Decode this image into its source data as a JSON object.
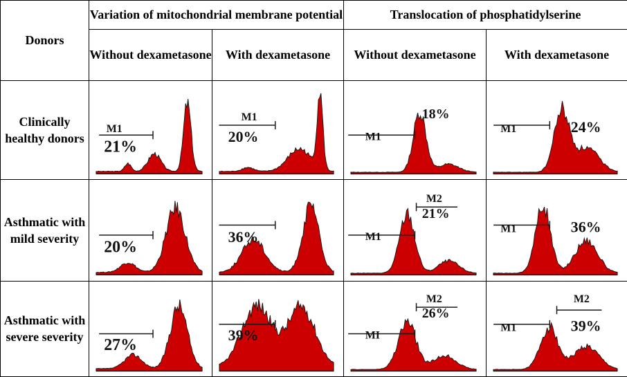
{
  "header": {
    "donors": "Donors",
    "mmp": "Variation of mitochondrial membrane potential",
    "ps": "Translocation of phosphatidylserine",
    "without": "Without dexametasone",
    "with": "With dexametasone",
    "with_one_line": "With dexametasone"
  },
  "rows": [
    {
      "donor": "Clinically healthy donors"
    },
    {
      "donor": "Asthmatic with mild severity"
    },
    {
      "donor": "Asthmatic with severe severity"
    }
  ],
  "colors": {
    "fill": "#cc0000",
    "line": "#1a1a1a"
  },
  "chart_data": {
    "type": "table",
    "description_columns": [
      "MMP without dexametasone",
      "MMP with dexametasone",
      "PS without dexametasone",
      "PS with dexametasone"
    ],
    "cells": [
      [
        {
          "marker": "M1",
          "value": "21%",
          "peaks": [
            {
              "c": 0.3,
              "h": 0.1,
              "w": 0.03
            },
            {
              "c": 0.55,
              "h": 0.22,
              "w": 0.06
            },
            {
              "c": 0.86,
              "h": 0.85,
              "w": 0.035
            }
          ],
          "tail": 0.03
        },
        {
          "marker": "M1",
          "value": "20%",
          "peaks": [
            {
              "c": 0.25,
              "h": 0.05,
              "w": 0.05
            },
            {
              "c": 0.7,
              "h": 0.28,
              "w": 0.1
            },
            {
              "c": 0.88,
              "h": 0.95,
              "w": 0.025
            }
          ],
          "tail": 0.03
        },
        {
          "marker": "M1",
          "value": "18%",
          "peaks": [
            {
              "c": 0.55,
              "h": 0.75,
              "w": 0.05
            },
            {
              "c": 0.78,
              "h": 0.1,
              "w": 0.08
            }
          ],
          "tail": 0.02
        },
        {
          "marker": "M1",
          "value": "24%",
          "peaks": [
            {
              "c": 0.55,
              "h": 0.75,
              "w": 0.06
            },
            {
              "c": 0.75,
              "h": 0.3,
              "w": 0.1
            }
          ],
          "tail": 0.02
        }
      ],
      [
        {
          "marker": "",
          "value": "20%",
          "peaks": [
            {
              "c": 0.3,
              "h": 0.12,
              "w": 0.07
            },
            {
              "c": 0.75,
              "h": 0.78,
              "w": 0.09
            }
          ],
          "tail": 0.03
        },
        {
          "marker": "",
          "value": "36%",
          "peaks": [
            {
              "c": 0.3,
              "h": 0.4,
              "w": 0.1
            },
            {
              "c": 0.8,
              "h": 0.8,
              "w": 0.07
            }
          ],
          "tail": 0.03
        },
        {
          "marker": "M1",
          "value": "21%",
          "secondary": "M2",
          "peaks": [
            {
              "c": 0.45,
              "h": 0.72,
              "w": 0.06
            },
            {
              "c": 0.78,
              "h": 0.15,
              "w": 0.08
            }
          ],
          "tail": 0.02
        },
        {
          "marker": "M1",
          "value": "36%",
          "peaks": [
            {
              "c": 0.4,
              "h": 0.82,
              "w": 0.06
            },
            {
              "c": 0.75,
              "h": 0.4,
              "w": 0.09
            }
          ],
          "tail": 0.02
        }
      ],
      [
        {
          "marker": "",
          "value": "27%",
          "peaks": [
            {
              "c": 0.35,
              "h": 0.18,
              "w": 0.08
            },
            {
              "c": 0.78,
              "h": 0.82,
              "w": 0.08
            }
          ],
          "tail": 0.03
        },
        {
          "marker": "",
          "value": "39%",
          "peaks": [
            {
              "c": 0.33,
              "h": 0.8,
              "w": 0.13
            },
            {
              "c": 0.72,
              "h": 0.78,
              "w": 0.12
            }
          ],
          "tail": 0.05
        },
        {
          "marker": "MI",
          "value": "26%",
          "secondary": "M2",
          "peaks": [
            {
              "c": 0.45,
              "h": 0.62,
              "w": 0.07
            },
            {
              "c": 0.75,
              "h": 0.18,
              "w": 0.09
            }
          ],
          "tail": 0.02
        },
        {
          "marker": "M1",
          "value": "39%",
          "secondary": "M2",
          "peaks": [
            {
              "c": 0.45,
              "h": 0.55,
              "w": 0.07
            },
            {
              "c": 0.75,
              "h": 0.3,
              "w": 0.1
            }
          ],
          "tail": 0.02
        }
      ]
    ]
  }
}
